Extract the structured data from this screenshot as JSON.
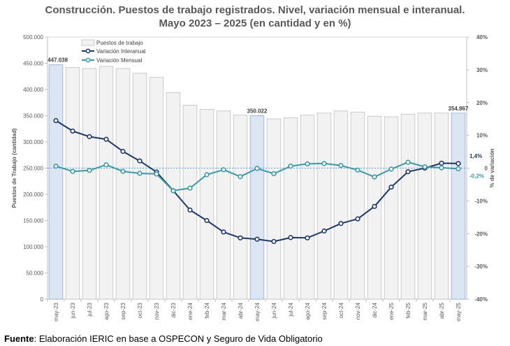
{
  "title_line1": "Construcción. Puestos de trabajo registrados. Nivel, variación mensual e interanual.",
  "title_line2": "Mayo 2023 – 2025 (en cantidad y en %)",
  "source_label": "Fuente",
  "source_text": ": Elaboración IERIC en base a OSPECON y Seguro de Vida Obligatorio",
  "chart_data": {
    "type": "bar+line",
    "categories": [
      "may-23",
      "jun-23",
      "jul-23",
      "ago-23",
      "sep-23",
      "oct-23",
      "nov-23",
      "dic-23",
      "ene-24",
      "feb-24",
      "mar-24",
      "abr-24",
      "may-24",
      "jun-24",
      "jul-24",
      "ago-24",
      "sep-24",
      "oct-24",
      "nov-24",
      "dic-24",
      "ene-25",
      "feb-25",
      "mar-25",
      "abr-25",
      "may-25"
    ],
    "highlighted_categories": [
      "may-23",
      "may-24",
      "may-25"
    ],
    "ylabel_left": "Puestos de Trabajo (cantidad)",
    "ylabel_right": "% de variación",
    "ylim_left": [
      0,
      500000
    ],
    "ylim_right": [
      -40,
      40
    ],
    "yticks_left": [
      "0",
      "50.000",
      "100.000",
      "150.000",
      "200.000",
      "250.000",
      "300.000",
      "350.000",
      "400.000",
      "450.000",
      "500.000"
    ],
    "yticks_right": [
      "-40%",
      "-30%",
      "-20%",
      "-10%",
      "0",
      "10%",
      "20%",
      "30%",
      "40%"
    ],
    "bar_series": {
      "name": "Puestos de trabajo",
      "values": [
        447038,
        442000,
        440000,
        444000,
        440000,
        431000,
        423000,
        394000,
        370000,
        362000,
        359000,
        351000,
        350022,
        344000,
        346000,
        351000,
        355000,
        359000,
        357000,
        349000,
        348000,
        353000,
        355000,
        355000,
        354867
      ]
    },
    "line_series": [
      {
        "name": "Variación Interanual",
        "color": "#1f3864",
        "values": [
          14.5,
          11.3,
          9.6,
          8.8,
          5.1,
          2.2,
          -1.2,
          -6.9,
          -12.8,
          -16.0,
          -19.5,
          -21.3,
          -21.7,
          -22.4,
          -21.2,
          -21.3,
          -19.2,
          -16.9,
          -15.5,
          -11.7,
          -5.8,
          -1.1,
          0.0,
          1.5,
          1.4
        ]
      },
      {
        "name": "Variación Mensual",
        "color": "#3b99a4",
        "values": [
          0.6,
          -1.0,
          -0.7,
          1.0,
          -1.0,
          -1.6,
          -1.8,
          -6.9,
          -6.1,
          -2.0,
          -0.5,
          -2.6,
          -0.1,
          -1.7,
          0.6,
          1.3,
          1.4,
          0.8,
          -0.6,
          -2.7,
          -0.3,
          1.8,
          0.4,
          0.1,
          -0.2
        ]
      }
    ],
    "bar_labels": [
      {
        "index": 0,
        "text": "447.038"
      },
      {
        "index": 12,
        "text": "350.022"
      },
      {
        "index": 24,
        "text": "354.867"
      }
    ],
    "line_end_labels": [
      {
        "series": "Variación Interanual",
        "text": "1,4%"
      },
      {
        "series": "Variación Mensual",
        "text": "-0,2%"
      }
    ],
    "zero_reference_line": "dashed"
  }
}
